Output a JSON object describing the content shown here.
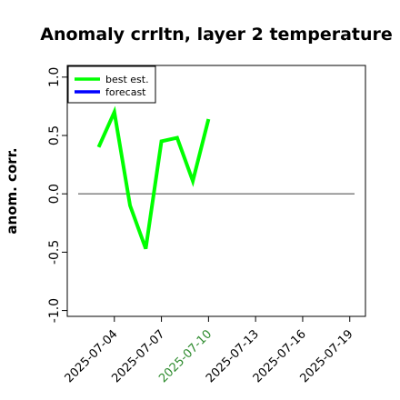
{
  "chart_data": {
    "type": "line",
    "title": "Anomaly crrltn, layer 2 temperature",
    "xlabel": "",
    "ylabel": "anom. corr.",
    "xlim": [
      "2025-07-01",
      "2025-07-20"
    ],
    "ylim": [
      -1.05,
      1.1
    ],
    "yticks": [
      -1.0,
      -0.5,
      0.0,
      0.5,
      1.0
    ],
    "ytick_labels": [
      "-1.0",
      "-0.5",
      "0.0",
      "0.5",
      "1.0"
    ],
    "xtick_labels": [
      "2025-07-04",
      "2025-07-07",
      "2025-07-10",
      "2025-07-13",
      "2025-07-16",
      "2025-07-19"
    ],
    "xticks": [
      "2025-07-04",
      "2025-07-07",
      "2025-07-10",
      "2025-07-13",
      "2025-07-16",
      "2025-07-19"
    ],
    "highlight_tick": "2025-07-10",
    "highlight_color": "#2e8b2e",
    "reference_line": 0.0,
    "legend_placement": "top-left",
    "grid": false,
    "series": [
      {
        "name": "best est.",
        "color": "#00ff00",
        "x": [
          "2025-07-03",
          "2025-07-04",
          "2025-07-05",
          "2025-07-06",
          "2025-07-07",
          "2025-07-08",
          "2025-07-09",
          "2025-07-10"
        ],
        "values": [
          0.4,
          0.7,
          -0.1,
          -0.47,
          0.45,
          0.48,
          0.11,
          0.64
        ]
      },
      {
        "name": "forecast",
        "color": "#0000ff",
        "x": [],
        "values": []
      }
    ]
  }
}
